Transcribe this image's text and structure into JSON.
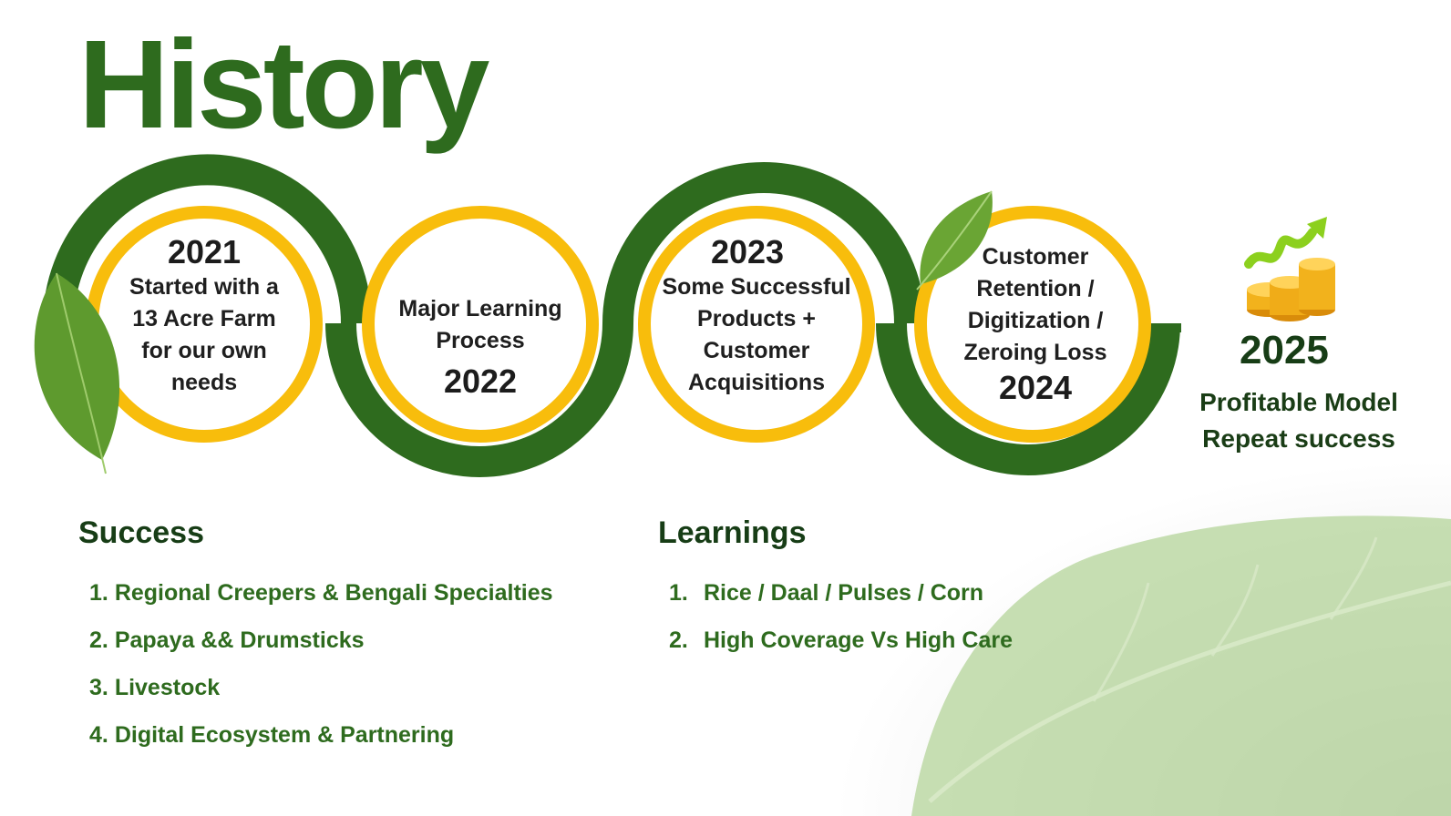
{
  "title": "History",
  "colors": {
    "green": "#2e6b1e",
    "yellow": "#f8bd0c",
    "dark": "#173d16"
  },
  "milestones": [
    {
      "year": "2021",
      "lines": [
        "Started with a",
        "13 Acre Farm",
        "for our own",
        "needs"
      ]
    },
    {
      "year": "2022",
      "lines": [
        "Major Learning",
        "Process"
      ]
    },
    {
      "year": "2023",
      "lines": [
        "Some Successful",
        "Products +",
        "Customer",
        "Acquisitions"
      ]
    },
    {
      "year": "2024",
      "lines": [
        "Customer",
        "Retention /",
        "Digitization /",
        "Zeroing Loss"
      ]
    }
  ],
  "final": {
    "year": "2025",
    "line1": "Profitable Model",
    "line2": "Repeat success",
    "icon": "coins-growth-icon"
  },
  "success": {
    "heading": "Success",
    "items": [
      {
        "num": "1.",
        "text": "Regional Creepers & Bengali Specialties"
      },
      {
        "num": "2.",
        "text": "Papaya && Drumsticks"
      },
      {
        "num": "3.",
        "text": "Livestock"
      },
      {
        "num": "4.",
        "text": "Digital Ecosystem & Partnering"
      }
    ]
  },
  "learnings": {
    "heading": "Learnings",
    "items": [
      {
        "num": "1.",
        "text": "Rice / Daal / Pulses / Corn"
      },
      {
        "num": "2.",
        "text": "High Coverage Vs High Care"
      }
    ]
  }
}
